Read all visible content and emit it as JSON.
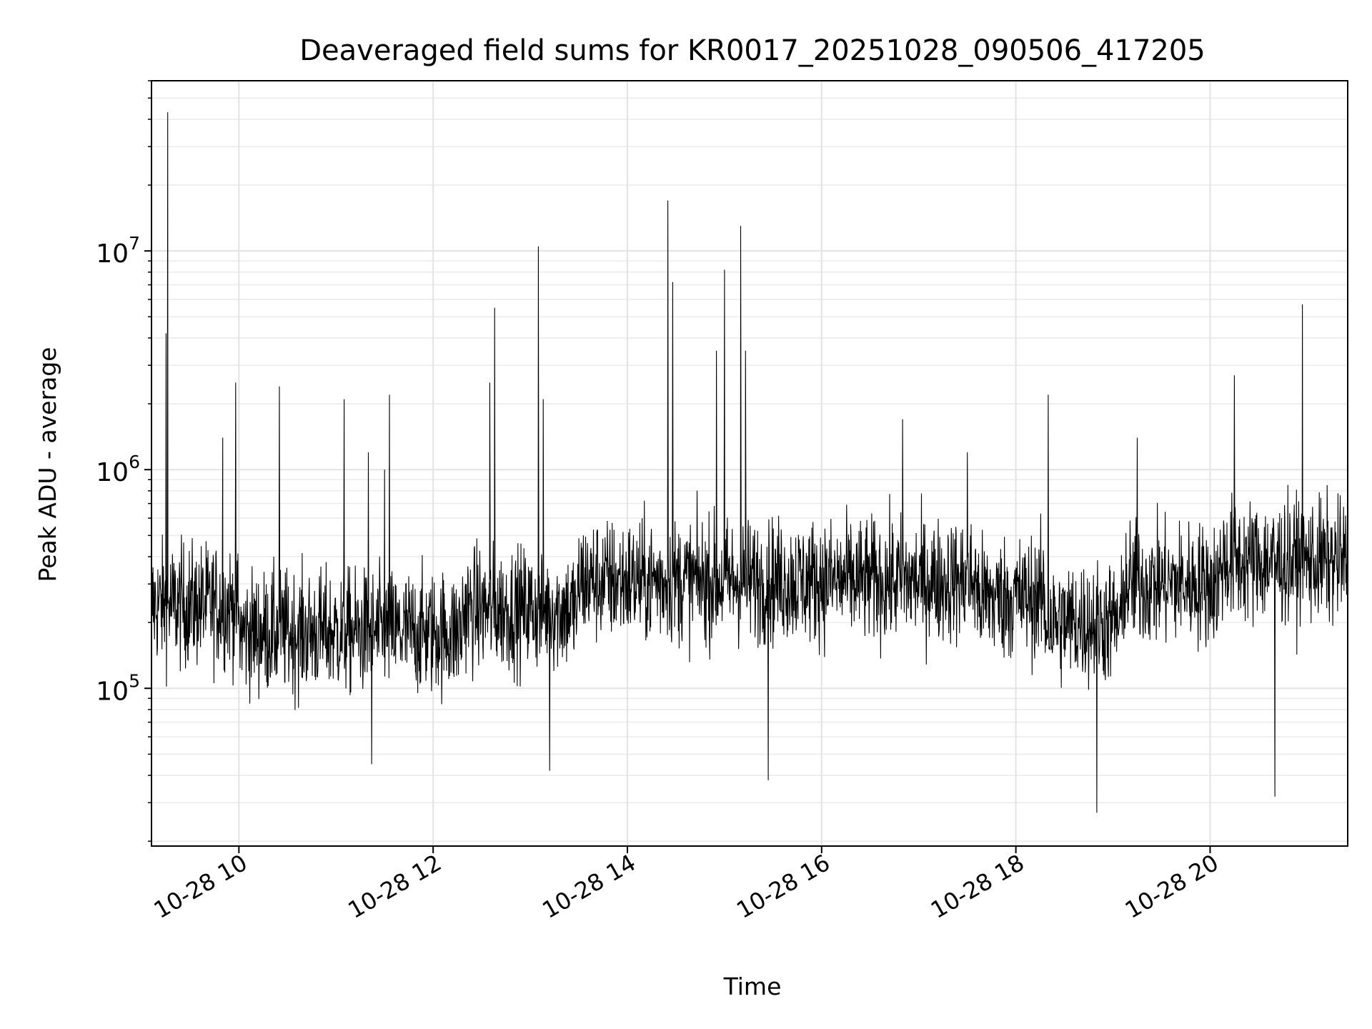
{
  "chart_data": {
    "type": "line",
    "title": "Deaveraged field sums for KR0017_20251028_090506_417205",
    "xlabel": "Time",
    "ylabel": "Peak ADU - average",
    "x_range": [
      "2025-10-28 09:06",
      "2025-10-28 21:25"
    ],
    "y_range": [
      19000,
      60000000
    ],
    "y_scale": "log",
    "grid": true,
    "line_color": "#000000",
    "x_ticks": [
      {
        "value": "2025-10-28 10:00",
        "label": "10-28 10"
      },
      {
        "value": "2025-10-28 12:00",
        "label": "10-28 12"
      },
      {
        "value": "2025-10-28 14:00",
        "label": "10-28 14"
      },
      {
        "value": "2025-10-28 16:00",
        "label": "10-28 16"
      },
      {
        "value": "2025-10-28 18:00",
        "label": "10-28 18"
      },
      {
        "value": "2025-10-28 20:00",
        "label": "10-28 20"
      }
    ],
    "y_ticks": [
      {
        "value": 100000,
        "base": "10",
        "exp": "5"
      },
      {
        "value": 1000000,
        "base": "10",
        "exp": "6"
      },
      {
        "value": 10000000,
        "base": "10",
        "exp": "7"
      }
    ],
    "series": [
      {
        "values": [
          [
            "2025-10-28 09:06",
            250000
          ],
          [
            "2025-10-28 09:12",
            180000
          ],
          [
            "2025-10-28 09:15",
            4200000
          ],
          [
            "2025-10-28 09:16",
            43000000
          ],
          [
            "2025-10-28 09:18",
            200000
          ],
          [
            "2025-10-28 09:30",
            300000
          ],
          [
            "2025-10-28 09:45",
            230000
          ],
          [
            "2025-10-28 09:50",
            1400000
          ],
          [
            "2025-10-28 09:55",
            90000
          ],
          [
            "2025-10-28 09:58",
            2500000
          ],
          [
            "2025-10-28 10:05",
            180000
          ],
          [
            "2025-10-28 10:15",
            140000
          ],
          [
            "2025-10-28 10:25",
            2400000
          ],
          [
            "2025-10-28 10:35",
            160000
          ],
          [
            "2025-10-28 10:50",
            170000
          ],
          [
            "2025-10-28 11:00",
            150000
          ],
          [
            "2025-10-28 11:05",
            2100000
          ],
          [
            "2025-10-28 11:12",
            230000
          ],
          [
            "2025-10-28 11:20",
            1200000
          ],
          [
            "2025-10-28 11:22",
            45000
          ],
          [
            "2025-10-28 11:30",
            1000000
          ],
          [
            "2025-10-28 11:33",
            2200000
          ],
          [
            "2025-10-28 11:40",
            180000
          ],
          [
            "2025-10-28 11:55",
            150000
          ],
          [
            "2025-10-28 12:05",
            200000
          ],
          [
            "2025-10-28 12:20",
            240000
          ],
          [
            "2025-10-28 12:30",
            400000
          ],
          [
            "2025-10-28 12:35",
            2500000
          ],
          [
            "2025-10-28 12:38",
            5500000
          ],
          [
            "2025-10-28 12:45",
            300000
          ],
          [
            "2025-10-28 13:00",
            250000
          ],
          [
            "2025-10-28 13:05",
            10500000
          ],
          [
            "2025-10-28 13:08",
            2100000
          ],
          [
            "2025-10-28 13:12",
            42000
          ],
          [
            "2025-10-28 13:20",
            320000
          ],
          [
            "2025-10-28 13:40",
            300000
          ],
          [
            "2025-10-28 14:00",
            300000
          ],
          [
            "2025-10-28 14:15",
            330000
          ],
          [
            "2025-10-28 14:25",
            17000000
          ],
          [
            "2025-10-28 14:28",
            7200000
          ],
          [
            "2025-10-28 14:40",
            260000
          ],
          [
            "2025-10-28 14:55",
            3500000
          ],
          [
            "2025-10-28 15:00",
            8200000
          ],
          [
            "2025-10-28 15:05",
            300000
          ],
          [
            "2025-10-28 15:10",
            13000000
          ],
          [
            "2025-10-28 15:13",
            3500000
          ],
          [
            "2025-10-28 15:20",
            330000
          ],
          [
            "2025-10-28 15:27",
            38000
          ],
          [
            "2025-10-28 15:40",
            330000
          ],
          [
            "2025-10-28 16:00",
            350000
          ],
          [
            "2025-10-28 16:30",
            370000
          ],
          [
            "2025-10-28 16:50",
            1700000
          ],
          [
            "2025-10-28 17:00",
            380000
          ],
          [
            "2025-10-28 17:30",
            1200000
          ],
          [
            "2025-10-28 17:50",
            260000
          ],
          [
            "2025-10-28 18:05",
            180000
          ],
          [
            "2025-10-28 18:20",
            2200000
          ],
          [
            "2025-10-28 18:30",
            150000
          ],
          [
            "2025-10-28 18:50",
            27000
          ],
          [
            "2025-10-28 19:00",
            140000
          ],
          [
            "2025-10-28 19:15",
            1400000
          ],
          [
            "2025-10-28 19:30",
            200000
          ],
          [
            "2025-10-28 19:45",
            250000
          ],
          [
            "2025-10-28 20:00",
            400000
          ],
          [
            "2025-10-28 20:15",
            2700000
          ],
          [
            "2025-10-28 20:30",
            350000
          ],
          [
            "2025-10-28 20:40",
            32000
          ],
          [
            "2025-10-28 20:50",
            300000
          ],
          [
            "2025-10-28 20:57",
            5700000
          ],
          [
            "2025-10-28 21:05",
            400000
          ],
          [
            "2025-10-28 21:15",
            600000
          ],
          [
            "2025-10-28 21:25",
            500000
          ]
        ]
      }
    ]
  }
}
